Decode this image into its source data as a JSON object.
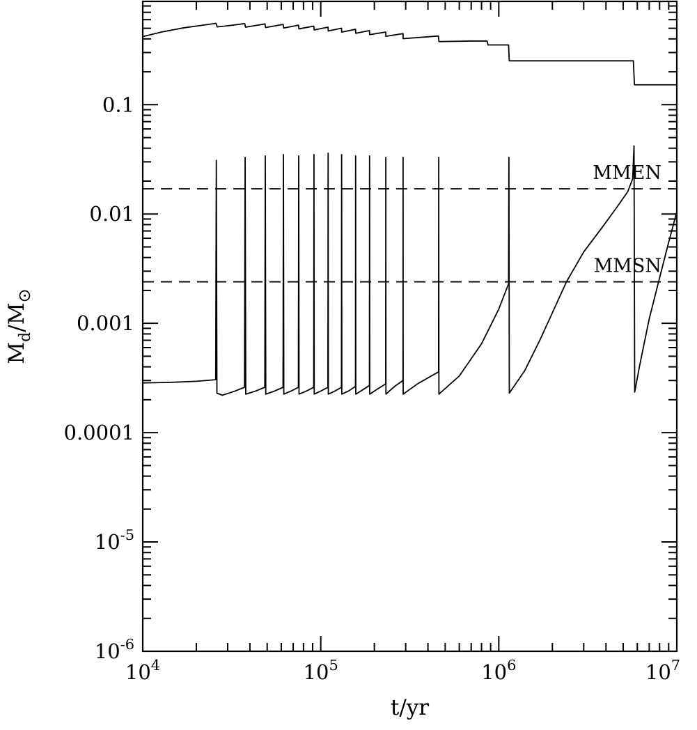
{
  "figure": {
    "background": "#ffffff",
    "ink_color": "#000000"
  },
  "chart_data": {
    "type": "line",
    "title": "",
    "xlabel": "t/yr",
    "ylabel_parts": {
      "m1": "M",
      "sub1": "d",
      "m2": "/M",
      "sub2": "⊙"
    },
    "x_scale": "log",
    "y_scale": "log",
    "x_range_log10": [
      4,
      7
    ],
    "y_range_log10": [
      -6,
      -0.055
    ],
    "grid": false,
    "legend": "none",
    "x_ticks": [
      {
        "t": 10000,
        "base": "10",
        "exp": "4"
      },
      {
        "t": 100000,
        "base": "10",
        "exp": "5"
      },
      {
        "t": 1000000,
        "base": "10",
        "exp": "6"
      },
      {
        "t": 10000000,
        "base": "10",
        "exp": "7"
      }
    ],
    "y_ticks": [
      {
        "v": 0.1,
        "base": "0.1",
        "exp": ""
      },
      {
        "v": 0.01,
        "base": "0.01",
        "exp": ""
      },
      {
        "v": 0.001,
        "base": "0.001",
        "exp": ""
      },
      {
        "v": 0.0001,
        "base": "0.0001",
        "exp": ""
      },
      {
        "v": 1e-05,
        "base": "10",
        "exp": "-5"
      },
      {
        "v": 1e-06,
        "base": "10",
        "exp": "-6"
      }
    ],
    "ref_lines": [
      {
        "name": "MMEN",
        "value": 0.017
      },
      {
        "name": "MMSN",
        "value": 0.0024
      }
    ],
    "series": [
      {
        "name": "upper-total-mass-curve",
        "points": [
          [
            10000,
            0.42
          ],
          [
            13000,
            0.465
          ],
          [
            17000,
            0.505
          ],
          [
            22000,
            0.535
          ],
          [
            25800,
            0.555
          ],
          [
            26200,
            0.515
          ],
          [
            30000,
            0.527
          ],
          [
            37400,
            0.552
          ],
          [
            37800,
            0.512
          ],
          [
            48600,
            0.548
          ],
          [
            49000,
            0.508
          ],
          [
            61500,
            0.543
          ],
          [
            61900,
            0.503
          ],
          [
            75000,
            0.534
          ],
          [
            75400,
            0.494
          ],
          [
            91400,
            0.523
          ],
          [
            91800,
            0.483
          ],
          [
            109800,
            0.512
          ],
          [
            110200,
            0.472
          ],
          [
            130800,
            0.501
          ],
          [
            131200,
            0.461
          ],
          [
            156800,
            0.49
          ],
          [
            157200,
            0.45
          ],
          [
            187800,
            0.477
          ],
          [
            188200,
            0.437
          ],
          [
            231800,
            0.462
          ],
          [
            232200,
            0.422
          ],
          [
            289800,
            0.447
          ],
          [
            290200,
            0.402
          ],
          [
            458000,
            0.425
          ],
          [
            461000,
            0.378
          ],
          [
            700000,
            0.382
          ],
          [
            860000,
            0.382
          ],
          [
            870000,
            0.352
          ],
          [
            1135000,
            0.352
          ],
          [
            1145000,
            0.252
          ],
          [
            5700000,
            0.252
          ],
          [
            5780000,
            0.152
          ],
          [
            10000000,
            0.152
          ]
        ]
      },
      {
        "name": "disk-mass-outburst-curve",
        "points": [
          [
            10000,
            0.000285
          ],
          [
            14000,
            0.000288
          ],
          [
            20000,
            0.000295
          ],
          [
            25700,
            0.000305
          ],
          [
            25900,
            0.031
          ],
          [
            26100,
            0.00023
          ],
          [
            28000,
            0.00022
          ],
          [
            33000,
            0.00024
          ],
          [
            37300,
            0.00026
          ],
          [
            37600,
            0.033
          ],
          [
            37900,
            0.000225
          ],
          [
            43000,
            0.00024
          ],
          [
            48500,
            0.00026
          ],
          [
            48800,
            0.034
          ],
          [
            49100,
            0.000225
          ],
          [
            55000,
            0.00024
          ],
          [
            61400,
            0.00026
          ],
          [
            61700,
            0.035
          ],
          [
            62000,
            0.000225
          ],
          [
            68000,
            0.00024
          ],
          [
            74900,
            0.00026
          ],
          [
            75200,
            0.034
          ],
          [
            75500,
            0.000225
          ],
          [
            83000,
            0.00024
          ],
          [
            91300,
            0.00026
          ],
          [
            91600,
            0.035
          ],
          [
            91900,
            0.000225
          ],
          [
            100000,
            0.00024
          ],
          [
            109700,
            0.00026
          ],
          [
            110000,
            0.036
          ],
          [
            110300,
            0.000225
          ],
          [
            120000,
            0.00024
          ],
          [
            130700,
            0.00026
          ],
          [
            131000,
            0.035
          ],
          [
            131300,
            0.000225
          ],
          [
            143000,
            0.00024
          ],
          [
            156700,
            0.000265
          ],
          [
            157000,
            0.034
          ],
          [
            157300,
            0.000225
          ],
          [
            171000,
            0.000245
          ],
          [
            187700,
            0.00027
          ],
          [
            188000,
            0.034
          ],
          [
            188300,
            0.000225
          ],
          [
            208000,
            0.00025
          ],
          [
            231700,
            0.00028
          ],
          [
            232000,
            0.033
          ],
          [
            232300,
            0.000225
          ],
          [
            260000,
            0.000265
          ],
          [
            289700,
            0.0003
          ],
          [
            290000,
            0.033
          ],
          [
            290300,
            0.000225
          ],
          [
            350000,
            0.00028
          ],
          [
            459000,
            0.00036
          ],
          [
            460000,
            0.033
          ],
          [
            461000,
            0.000225
          ],
          [
            600000,
            0.00033
          ],
          [
            800000,
            0.00065
          ],
          [
            1000000,
            0.00135
          ],
          [
            1135000,
            0.0023
          ],
          [
            1140000,
            0.033
          ],
          [
            1146000,
            0.00023
          ],
          [
            1400000,
            0.00037
          ],
          [
            1700000,
            0.0007
          ],
          [
            2000000,
            0.00125
          ],
          [
            2400000,
            0.0024
          ],
          [
            3000000,
            0.0045
          ],
          [
            3800000,
            0.0075
          ],
          [
            4600000,
            0.0115
          ],
          [
            5300000,
            0.016
          ],
          [
            5650000,
            0.021
          ],
          [
            5750000,
            0.042
          ],
          [
            5800000,
            0.000235
          ],
          [
            6200000,
            0.00042
          ],
          [
            7000000,
            0.0011
          ],
          [
            8000000,
            0.0026
          ],
          [
            9000000,
            0.0055
          ],
          [
            10000000,
            0.0105
          ]
        ]
      }
    ]
  }
}
